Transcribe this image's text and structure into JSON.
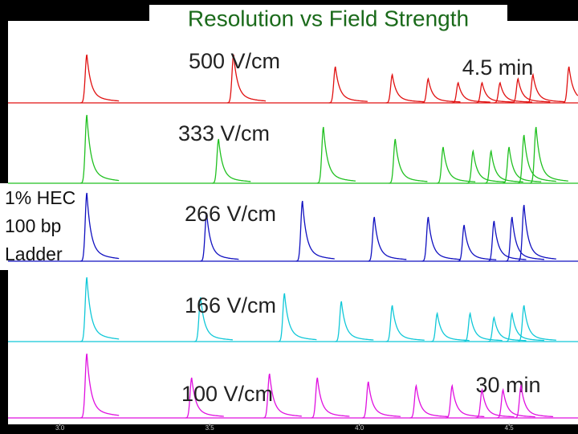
{
  "chart_data": {
    "type": "trace",
    "title": "Resolution vs Field Strength",
    "annotations": [
      "4.5 min",
      "30 min"
    ],
    "side_label": [
      "1% HEC",
      "100 bp",
      "Ladder"
    ],
    "xlim": [
      2.8,
      4.73
    ],
    "xticks": [
      {
        "value": 3,
        "label": "3.0"
      },
      {
        "value": 3.5,
        "label": "3.5"
      },
      {
        "value": 4,
        "label": "4.0"
      },
      {
        "value": 4.5,
        "label": "4.5"
      }
    ],
    "series": [
      {
        "name": "500 V/cm",
        "color": "#e01010",
        "peaks": [
          3.09,
          3.58,
          3.92,
          4.11,
          4.23,
          4.33,
          4.41,
          4.47,
          4.53,
          4.58,
          4.7
        ],
        "heights": [
          60,
          60,
          45,
          35,
          30,
          25,
          25,
          25,
          30,
          35,
          45
        ]
      },
      {
        "name": "333 V/cm",
        "color": "#20c020",
        "peaks": [
          3.09,
          3.53,
          3.88,
          4.12,
          4.28,
          4.38,
          4.44,
          4.5,
          4.55,
          4.59
        ],
        "heights": [
          85,
          55,
          70,
          55,
          45,
          40,
          40,
          45,
          60,
          70
        ]
      },
      {
        "name": "266 V/cm",
        "color": "#1010c0",
        "peaks": [
          3.09,
          3.49,
          3.81,
          4.05,
          4.23,
          4.35,
          4.45,
          4.51,
          4.55
        ],
        "heights": [
          85,
          60,
          75,
          55,
          55,
          45,
          50,
          55,
          70
        ]
      },
      {
        "name": "166 V/cm",
        "color": "#10c8d8",
        "peaks": [
          3.09,
          3.47,
          3.75,
          3.94,
          4.11,
          4.26,
          4.37,
          4.45,
          4.51,
          4.55
        ],
        "heights": [
          80,
          55,
          60,
          50,
          45,
          35,
          35,
          30,
          35,
          45
        ]
      },
      {
        "name": "100 V/cm",
        "color": "#e010e0",
        "peaks": [
          3.09,
          3.44,
          3.7,
          3.86,
          4.03,
          4.19,
          4.31,
          4.41,
          4.48,
          4.54
        ],
        "heights": [
          80,
          50,
          55,
          50,
          45,
          40,
          40,
          35,
          35,
          40
        ]
      }
    ]
  }
}
